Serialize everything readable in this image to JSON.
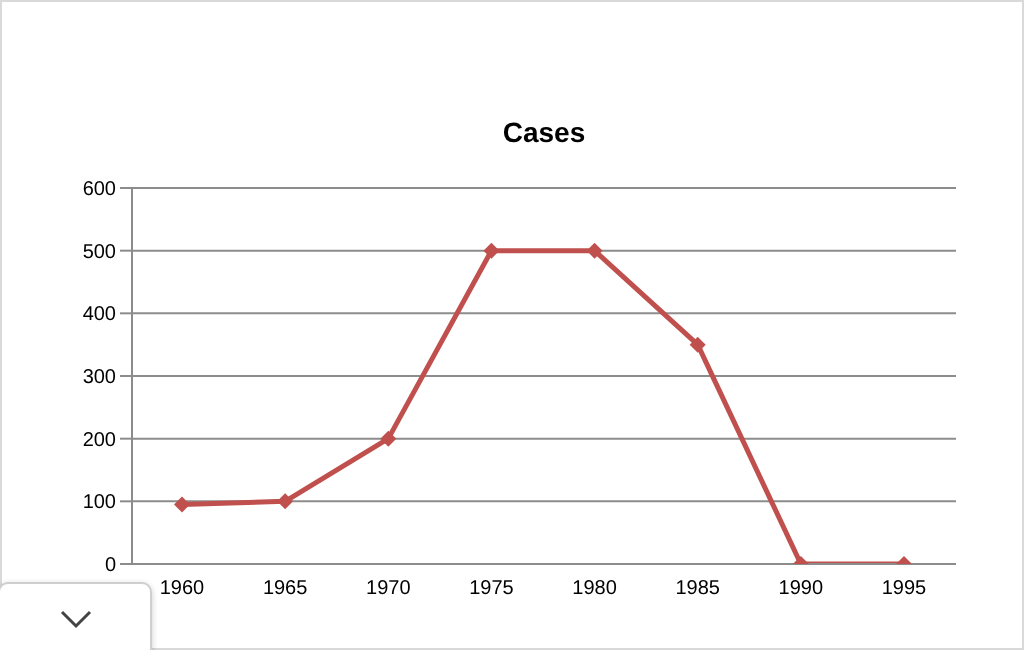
{
  "chart_data": {
    "type": "line",
    "title": "Cases",
    "categories": [
      "1960",
      "1965",
      "1970",
      "1975",
      "1980",
      "1985",
      "1990",
      "1995"
    ],
    "series": [
      {
        "color": "#c0504d",
        "values": [
          95,
          100,
          200,
          500,
          500,
          350,
          0,
          0
        ]
      }
    ],
    "ylim": [
      0,
      600
    ],
    "yticks": [
      0,
      100,
      200,
      300,
      400,
      500,
      600
    ],
    "grid": "y",
    "marker": "diamond",
    "line_style": "solid"
  }
}
